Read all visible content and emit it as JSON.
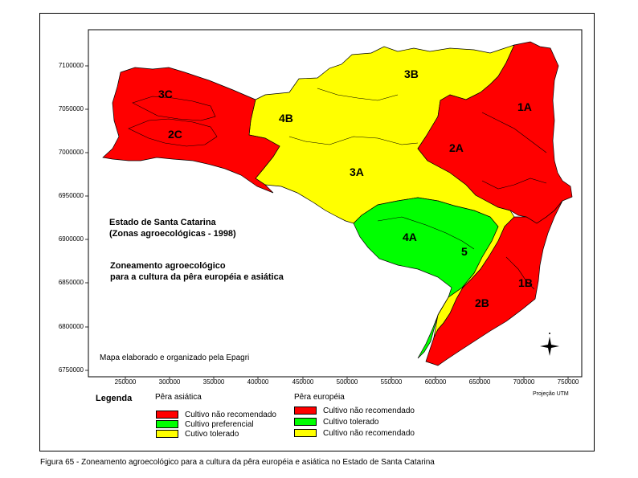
{
  "map": {
    "y_ticks": [
      "7100000",
      "7050000",
      "7000000",
      "6950000",
      "6900000",
      "6850000",
      "6800000",
      "6750000"
    ],
    "x_ticks": [
      "250000",
      "300000",
      "350000",
      "400000",
      "450000",
      "500000",
      "550000",
      "600000",
      "650000",
      "700000",
      "750000"
    ],
    "zones": [
      {
        "label": "3C",
        "color": "#ff0000"
      },
      {
        "label": "2C",
        "color": "#ff0000"
      },
      {
        "label": "4B",
        "color": "#ffff00"
      },
      {
        "label": "3B",
        "color": "#ffff00"
      },
      {
        "label": "3A",
        "color": "#ffff00"
      },
      {
        "label": "2A",
        "color": "#ff0000"
      },
      {
        "label": "1A",
        "color": "#ff0000"
      },
      {
        "label": "4A",
        "color": "#00ff00"
      },
      {
        "label": "5",
        "color": "#00ff00"
      },
      {
        "label": "1B",
        "color": "#ff0000"
      },
      {
        "label": "2B",
        "color": "#ff0000"
      }
    ],
    "state_title_line1": "Estado de Santa Catarina",
    "state_title_line2": "(Zonas agroecológicas - 1998)",
    "subject_line1": "Zoneamento agroecológico",
    "subject_line2": "para a cultura da pêra européia e asiática",
    "credit": "Mapa elaborado e organizado pela Epagri",
    "compass_icon": "north-arrow-star",
    "projection": "Projeção UTM"
  },
  "legend": {
    "title": "Legenda",
    "asian": {
      "heading": "Pêra asiática",
      "items": [
        {
          "label": "Cultivo não recomendado",
          "color": "#ff0000"
        },
        {
          "label": "Cultivo preferencial",
          "color": "#00ff00"
        },
        {
          "label": "Cutivo tolerado",
          "color": "#ffff00"
        }
      ]
    },
    "european": {
      "heading": "Pêra européia",
      "items": [
        {
          "label": "Cultivo não recomendado",
          "color": "#ff0000"
        },
        {
          "label": "Cultivo tolerado",
          "color": "#00ff00"
        },
        {
          "label": "Cultivo não recomendado",
          "color": "#ffff00"
        }
      ]
    }
  },
  "caption": "Figura 65 - Zoneamento agroecológico para a cultura da pêra européia e asiática no Estado de Santa Catarina"
}
